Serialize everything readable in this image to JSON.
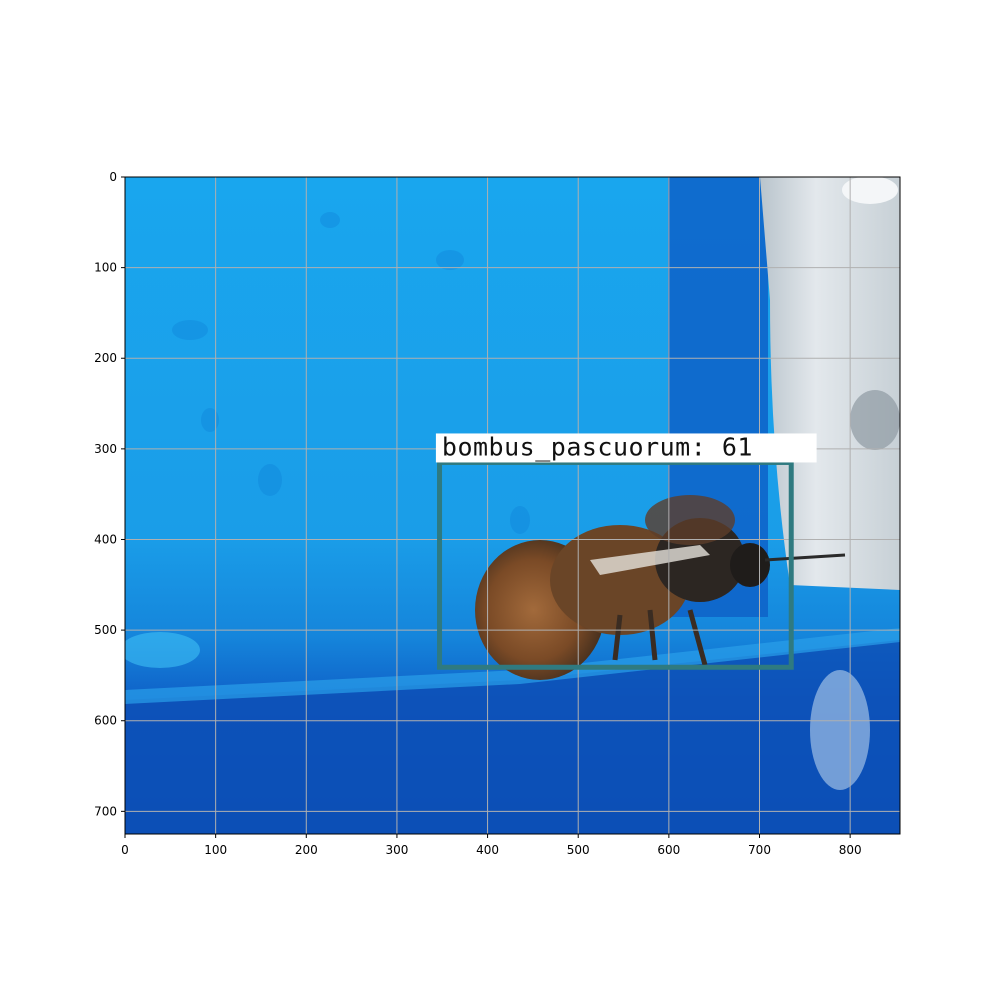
{
  "image": {
    "width": 855,
    "height": 725,
    "scene": "bumblebee-on-blue-surface"
  },
  "axes": {
    "x_range": [
      0,
      855
    ],
    "y_range": [
      725,
      0
    ],
    "y_inverted": true,
    "grid": true,
    "x_ticks": [
      0,
      100,
      200,
      300,
      400,
      500,
      600,
      700,
      800
    ],
    "y_ticks": [
      0,
      100,
      200,
      300,
      400,
      500,
      600,
      700
    ]
  },
  "detection": {
    "label": "bombus_pascuorum: 61",
    "box": {
      "x1": 347,
      "y1": 315,
      "x2": 735,
      "y2": 541
    },
    "label_band": {
      "x1": 343,
      "y1": 283,
      "x2": 763,
      "y2": 315
    },
    "box_color": "#2f7a80"
  },
  "colors": {
    "surface_light": "#1fa3ea",
    "surface_dark": "#0d55c2",
    "panel_grey": "#d7dde2",
    "grid": "#b0b0b0"
  }
}
